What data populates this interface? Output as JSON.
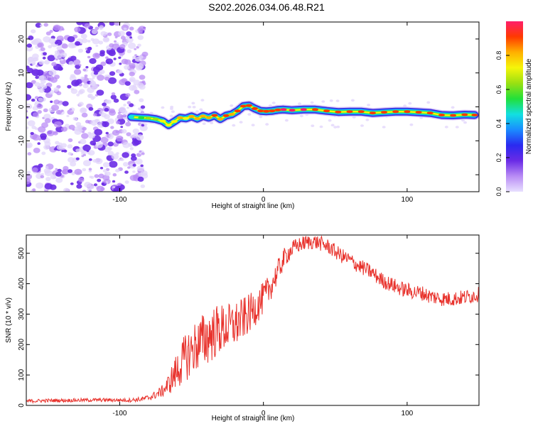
{
  "title": "S202.2026.034.06.48.R21",
  "colors": {
    "snr_line": "#e8322c",
    "track_core": "#e8322c",
    "noise": "#7a3fd8"
  },
  "colorbar": {
    "label": "Normalized spectral amplitude",
    "range": [
      0,
      1
    ],
    "ticks": [
      "0.0",
      "0.2",
      "0.4",
      "0.6",
      "0.8"
    ],
    "tick_values": [
      0.0,
      0.2,
      0.4,
      0.6,
      0.8
    ],
    "stops": [
      "#e8e0ff",
      "#b98cf5",
      "#6a2be6",
      "#2a2af0",
      "#1a8cff",
      "#12e0e0",
      "#22e03a",
      "#9ae012",
      "#f5f50a",
      "#ffb000",
      "#ff3a00",
      "#ff1e6a"
    ]
  },
  "chart_data": [
    {
      "type": "heatmap",
      "title": "S202.2026.034.06.48.R21",
      "xlabel": "Height of straight line (km)",
      "ylabel": "Frequency (Hz)",
      "xlim": [
        -165,
        150
      ],
      "ylim": [
        -25,
        25
      ],
      "xticks": [
        -100,
        0,
        100
      ],
      "xtick_labels": [
        "-100",
        "0",
        "100"
      ],
      "yticks": [
        -20,
        -10,
        0,
        10,
        20
      ],
      "ytick_labels": [
        "-20",
        "-10",
        "0",
        "10",
        "20"
      ],
      "noise_region_x": [
        -165,
        -82
      ],
      "track": {
        "x": [
          -92,
          -85,
          -80,
          -75,
          -70,
          -66,
          -62,
          -58,
          -54,
          -50,
          -46,
          -42,
          -38,
          -34,
          -30,
          -26,
          -22,
          -18,
          -14,
          -10,
          -6,
          -2,
          2,
          6,
          10,
          14,
          20,
          28,
          36,
          44,
          52,
          60,
          68,
          76,
          84,
          92,
          100,
          108,
          116,
          124,
          132,
          140,
          147
        ],
        "y": [
          -3,
          -3.2,
          -3.3,
          -3.6,
          -4.2,
          -5.4,
          -4.3,
          -3.2,
          -3.4,
          -2.8,
          -3.5,
          -2.7,
          -3.2,
          -2.5,
          -3.6,
          -2.6,
          -2.2,
          -1.2,
          0.2,
          0.4,
          -0.5,
          -1.2,
          -1.3,
          -1.2,
          -0.9,
          -0.8,
          -1.0,
          -0.8,
          -0.8,
          -1.2,
          -1.5,
          -1.4,
          -1.4,
          -1.8,
          -1.6,
          -1.4,
          -1.4,
          -1.6,
          -1.8,
          -2.4,
          -2.5,
          -2.3,
          -2.4
        ],
        "amplitude": [
          0.45,
          0.55,
          0.6,
          0.65,
          0.7,
          0.72,
          0.7,
          0.78,
          0.75,
          0.82,
          0.8,
          0.85,
          0.82,
          0.88,
          0.85,
          0.9,
          0.82,
          0.88,
          0.95,
          0.95,
          0.9,
          0.88,
          0.9,
          0.92,
          0.95,
          0.98,
          0.98,
          0.98,
          0.95,
          0.92,
          0.9,
          0.9,
          0.92,
          0.95,
          0.95,
          0.9,
          0.92,
          0.95,
          0.95,
          0.9,
          0.88,
          0.9,
          0.88
        ]
      }
    },
    {
      "type": "line",
      "xlabel": "Height of straight line (km)",
      "ylabel": "SNR (10 * v/v)",
      "xlim": [
        -165,
        150
      ],
      "ylim": [
        0,
        560
      ],
      "xticks": [
        -100,
        0,
        100
      ],
      "xtick_labels": [
        "-100",
        "0",
        "100"
      ],
      "yticks": [
        0,
        100,
        200,
        300,
        400,
        500
      ],
      "ytick_labels": [
        "0",
        "100",
        "200",
        "300",
        "400",
        "500"
      ],
      "series": [
        {
          "name": "SNR",
          "x": [
            -165,
            -150,
            -130,
            -110,
            -95,
            -85,
            -80,
            -75,
            -70,
            -66,
            -62,
            -58,
            -54,
            -50,
            -46,
            -42,
            -38,
            -34,
            -30,
            -26,
            -22,
            -18,
            -14,
            -10,
            -6,
            -2,
            2,
            6,
            10,
            14,
            18,
            22,
            26,
            30,
            34,
            38,
            42,
            46,
            50,
            55,
            60,
            65,
            70,
            75,
            80,
            85,
            90,
            95,
            100,
            105,
            110,
            115,
            120,
            125,
            130,
            135,
            140,
            145,
            150
          ],
          "y": [
            14,
            16,
            17,
            18,
            17,
            20,
            25,
            35,
            48,
            70,
            100,
            130,
            160,
            180,
            200,
            210,
            230,
            240,
            250,
            255,
            260,
            270,
            285,
            300,
            320,
            340,
            365,
            400,
            440,
            480,
            505,
            520,
            530,
            535,
            538,
            535,
            528,
            520,
            505,
            490,
            478,
            462,
            450,
            438,
            420,
            405,
            395,
            385,
            378,
            372,
            370,
            360,
            355,
            350,
            350,
            352,
            355,
            360,
            365
          ],
          "noise_amplitude": [
            6,
            6,
            6,
            6,
            6,
            8,
            10,
            14,
            20,
            35,
            55,
            70,
            80,
            85,
            90,
            95,
            95,
            90,
            85,
            80,
            78,
            75,
            70,
            65,
            60,
            55,
            52,
            45,
            40,
            35,
            30,
            28,
            25,
            25,
            25,
            25,
            25,
            25,
            25,
            25,
            25,
            25,
            25,
            25,
            25,
            25,
            25,
            25,
            25,
            25,
            25,
            25,
            25,
            25,
            25,
            25,
            25,
            25,
            25
          ]
        }
      ]
    }
  ]
}
